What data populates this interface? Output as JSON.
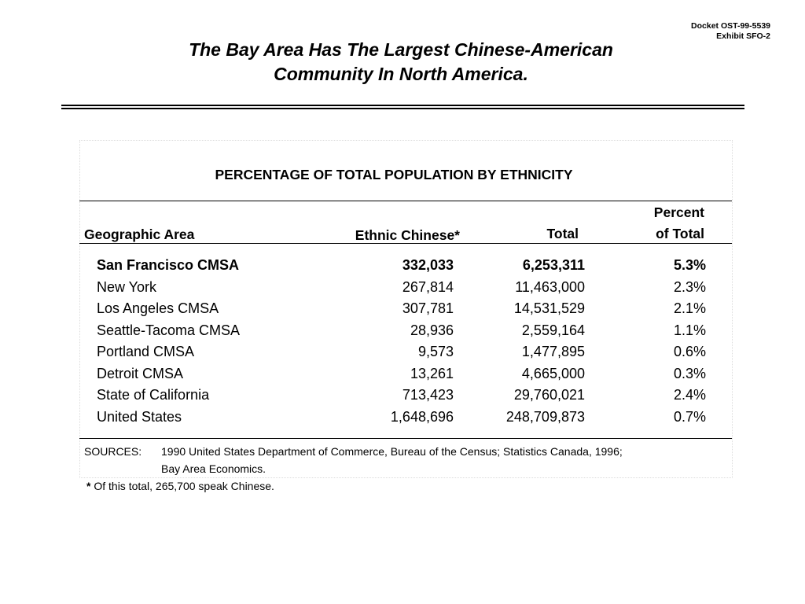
{
  "header": {
    "docket": "Docket OST-99-5539",
    "exhibit": "Exhibit SFO-2",
    "title_line1": "The Bay Area Has The Largest Chinese-American",
    "title_line2": "Community In North America."
  },
  "table": {
    "title": "PERCENTAGE OF TOTAL POPULATION BY ETHNICITY",
    "columns": {
      "area": "Geographic Area",
      "ethnic": "Ethnic Chinese*",
      "total": "Total",
      "percent_line1": "Percent",
      "percent_line2": "of Total"
    },
    "rows": [
      {
        "area": "San Francisco CMSA",
        "ethnic": "332,033",
        "total": "6,253,311",
        "percent": "5.3%"
      },
      {
        "area": "New York",
        "ethnic": "267,814",
        "total": "11,463,000",
        "percent": "2.3%"
      },
      {
        "area": "Los Angeles CMSA",
        "ethnic": "307,781",
        "total": "14,531,529",
        "percent": "2.1%"
      },
      {
        "area": "Seattle-Tacoma CMSA",
        "ethnic": "28,936",
        "total": "2,559,164",
        "percent": "1.1%"
      },
      {
        "area": "Portland CMSA",
        "ethnic": "9,573",
        "total": "1,477,895",
        "percent": "0.6%"
      },
      {
        "area": "Detroit CMSA",
        "ethnic": "13,261",
        "total": "4,665,000",
        "percent": "0.3%"
      },
      {
        "area": "State of California",
        "ethnic": "713,423",
        "total": "29,760,021",
        "percent": "2.4%"
      },
      {
        "area": "United States",
        "ethnic": "1,648,696",
        "total": "248,709,873",
        "percent": "0.7%"
      }
    ]
  },
  "sources": {
    "label": "SOURCES:",
    "line1": "1990 United States Department of Commerce, Bureau of the Census; Statistics Canada, 1996;",
    "line2": "Bay Area Economics."
  },
  "footnote": {
    "marker": "*",
    "text": " Of this total, 265,700 speak Chinese."
  }
}
